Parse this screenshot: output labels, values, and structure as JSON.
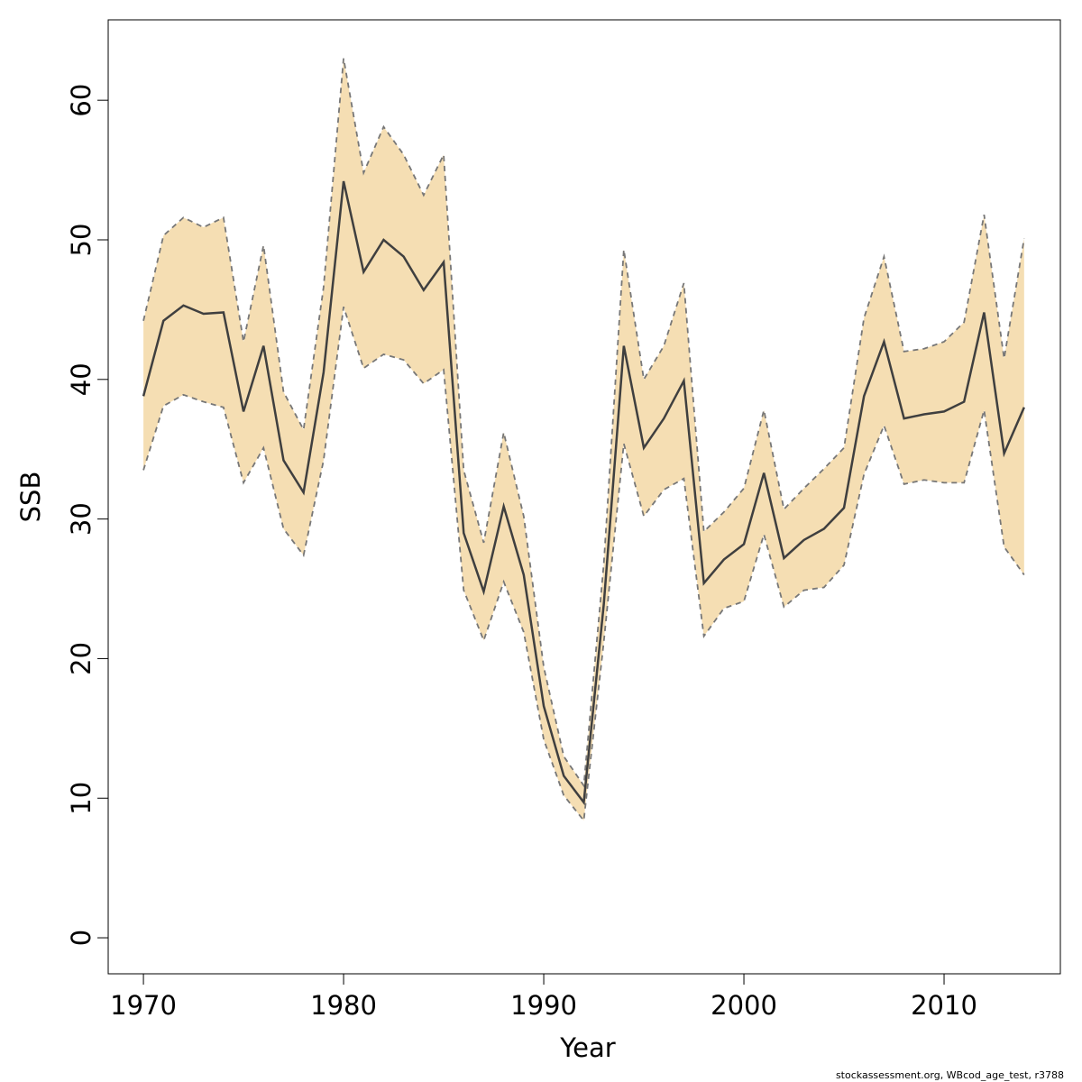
{
  "chart_data": {
    "type": "line",
    "xlabel": "Year",
    "ylabel": "SSB",
    "footnote": "stockassessment.org, WBcod_age_test, r3788",
    "x": [
      1970,
      1971,
      1972,
      1973,
      1974,
      1975,
      1976,
      1977,
      1978,
      1979,
      1980,
      1981,
      1982,
      1983,
      1984,
      1985,
      1986,
      1987,
      1988,
      1989,
      1990,
      1991,
      1992,
      1993,
      1994,
      1995,
      1996,
      1997,
      1998,
      1999,
      2000,
      2001,
      2002,
      2003,
      2004,
      2005,
      2006,
      2007,
      2008,
      2009,
      2010,
      2011,
      2012,
      2013,
      2014
    ],
    "values": [
      38.8,
      44.2,
      45.3,
      44.7,
      44.8,
      37.7,
      42.4,
      34.2,
      31.9,
      40.5,
      54.2,
      47.7,
      50.0,
      48.8,
      46.4,
      48.4,
      29.0,
      24.8,
      30.9,
      26.0,
      16.6,
      11.6,
      9.7,
      23.9,
      42.4,
      35.1,
      37.2,
      39.9,
      25.4,
      27.1,
      28.2,
      33.3,
      27.2,
      28.5,
      29.3,
      30.8,
      38.8,
      42.7,
      37.2,
      37.5,
      37.7,
      38.4,
      44.8,
      34.7,
      38.0
    ],
    "upper": [
      44.2,
      50.3,
      51.6,
      50.9,
      51.6,
      42.7,
      49.6,
      39.1,
      36.4,
      46.6,
      63.0,
      54.8,
      58.1,
      56.1,
      53.2,
      56.1,
      33.5,
      28.3,
      36.2,
      30.2,
      19.4,
      13.0,
      10.9,
      26.8,
      49.3,
      40.0,
      42.4,
      46.9,
      29.1,
      30.5,
      32.2,
      37.8,
      30.7,
      32.2,
      33.6,
      35.1,
      44.4,
      48.8,
      42.0,
      42.2,
      42.7,
      44.1,
      51.8,
      41.5,
      50.1
    ],
    "lower": [
      33.5,
      38.1,
      38.9,
      38.4,
      38.0,
      32.6,
      35.1,
      29.3,
      27.4,
      34.2,
      45.2,
      40.8,
      41.8,
      41.4,
      39.7,
      40.7,
      24.9,
      21.3,
      25.5,
      21.9,
      14.2,
      10.2,
      8.4,
      21.2,
      35.4,
      30.2,
      32.1,
      32.9,
      21.6,
      23.6,
      24.1,
      28.9,
      23.7,
      24.9,
      25.1,
      26.7,
      33.2,
      36.7,
      32.5,
      32.8,
      32.6,
      32.6,
      37.8,
      28.0,
      26.0
    ],
    "color": "#3f3f3f",
    "band_color": "#f5deb3",
    "band_line_color": "#777777",
    "xlim": [
      1968.24,
      2015.81
    ],
    "ylim": [
      -2.58,
      65.76
    ],
    "xticks": [
      1970,
      1980,
      1990,
      2000,
      2010
    ],
    "yticks": [
      0,
      10,
      20,
      30,
      40,
      50,
      60
    ],
    "grid": false
  }
}
